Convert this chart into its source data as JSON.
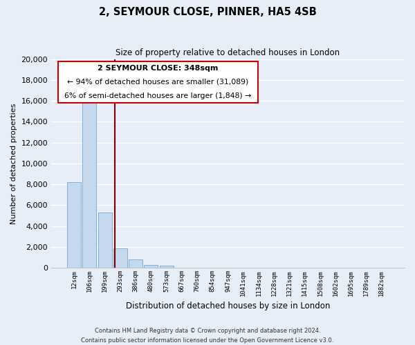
{
  "title": "2, SEYMOUR CLOSE, PINNER, HA5 4SB",
  "subtitle": "Size of property relative to detached houses in London",
  "bar_heights": [
    8200,
    16600,
    5300,
    1850,
    780,
    310,
    230,
    0,
    0,
    0,
    0,
    0,
    0,
    0,
    0,
    0,
    0,
    0,
    0,
    0,
    0
  ],
  "categories": [
    "12sqm",
    "106sqm",
    "199sqm",
    "293sqm",
    "386sqm",
    "480sqm",
    "573sqm",
    "667sqm",
    "760sqm",
    "854sqm",
    "947sqm",
    "1041sqm",
    "1134sqm",
    "1228sqm",
    "1321sqm",
    "1415sqm",
    "1508sqm",
    "1602sqm",
    "1695sqm",
    "1789sqm",
    "1882sqm"
  ],
  "bar_color": "#c5d8ed",
  "bar_edge_color": "#6fa8d0",
  "ylabel": "Number of detached properties",
  "xlabel": "Distribution of detached houses by size in London",
  "ylim": [
    0,
    20000
  ],
  "yticks": [
    0,
    2000,
    4000,
    6000,
    8000,
    10000,
    12000,
    14000,
    16000,
    18000,
    20000
  ],
  "annotation_box_color": "#ffffff",
  "annotation_box_edge_color": "#cc0000",
  "annotation_title": "2 SEYMOUR CLOSE: 348sqm",
  "annotation_line1": "← 94% of detached houses are smaller (31,089)",
  "annotation_line2": "6% of semi-detached houses are larger (1,848) →",
  "footer_line1": "Contains HM Land Registry data © Crown copyright and database right 2024.",
  "footer_line2": "Contains public sector information licensed under the Open Government Licence v3.0.",
  "bg_color": "#e8eef8",
  "grid_color": "#ffffff",
  "vline_x": 2.65
}
